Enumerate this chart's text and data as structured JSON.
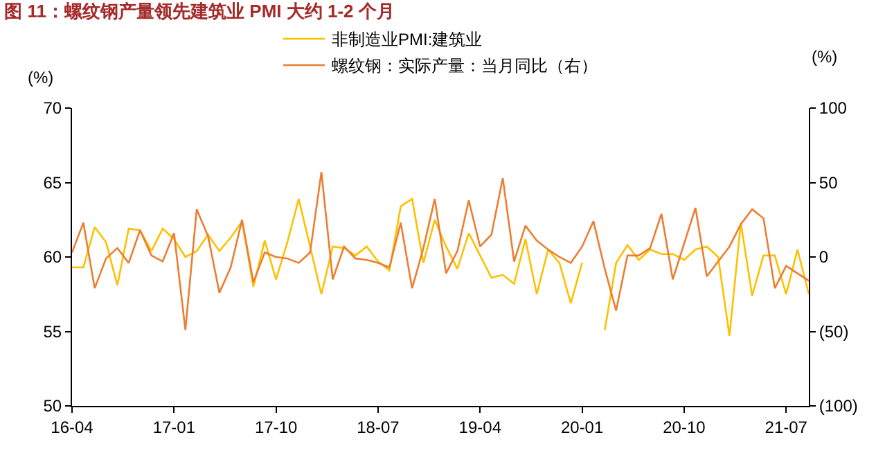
{
  "chart_data": {
    "type": "line",
    "title": "图 11：螺纹钢产量领先建筑业 PMI 大约 1-2 个月",
    "ylabel": "(%)",
    "y2label": "(%)",
    "categories": [
      "16-04",
      null,
      null,
      null,
      null,
      null,
      null,
      null,
      null,
      "17-01",
      null,
      null,
      null,
      null,
      null,
      null,
      null,
      null,
      "17-10",
      null,
      null,
      null,
      null,
      null,
      null,
      null,
      null,
      "18-07",
      null,
      null,
      null,
      null,
      null,
      null,
      null,
      null,
      "19-04",
      null,
      null,
      null,
      null,
      null,
      null,
      null,
      null,
      "20-01",
      null,
      null,
      null,
      null,
      null,
      null,
      null,
      null,
      "20-10",
      null,
      null,
      null,
      null,
      null,
      null,
      null,
      null,
      "21-07",
      null,
      null
    ],
    "series": [
      {
        "name": "非制造业PMI:建筑业",
        "color": "#ffc000",
        "values": [
          59.3,
          59.3,
          62.0,
          61.0,
          58.1,
          61.9,
          61.8,
          60.4,
          61.9,
          61.2,
          60.0,
          60.4,
          61.5,
          60.4,
          61.3,
          62.4,
          58.0,
          61.1,
          58.5,
          61.0,
          63.9,
          60.7,
          57.5,
          60.7,
          60.6,
          60.1,
          60.7,
          59.7,
          59.1,
          63.4,
          63.9,
          59.6,
          62.5,
          60.7,
          59.2,
          61.6,
          60.1,
          58.6,
          58.8,
          58.2,
          61.2,
          57.5,
          60.5,
          59.6,
          56.9,
          59.6,
          null,
          55.1,
          59.6,
          60.8,
          59.8,
          60.5,
          60.2,
          60.2,
          59.8,
          60.5,
          60.7,
          60.0,
          54.7,
          62.3,
          57.4,
          60.1,
          60.1,
          57.5,
          60.5,
          57.5
        ]
      },
      {
        "name": "螺纹钢：实际产量：当月同比（右）",
        "color": "#ed7d31",
        "axis": "y2",
        "values": [
          3,
          23,
          -21,
          -1,
          6,
          -4,
          18,
          1,
          -3,
          16,
          -49,
          32,
          14,
          -24,
          -7,
          25,
          -17,
          3,
          0,
          -1,
          -4,
          3,
          57,
          -15,
          7,
          -1,
          -2,
          -4,
          -7,
          23,
          -21,
          6,
          39,
          -11,
          4,
          38,
          7,
          15,
          53,
          -3,
          21,
          11,
          5,
          0,
          -4,
          7,
          24,
          -8,
          -36,
          1,
          1,
          6,
          29,
          -15,
          9,
          33,
          -13,
          -3,
          7,
          22,
          32,
          26,
          -21,
          -6,
          -11,
          -16
        ]
      }
    ],
    "ylim": [
      50,
      70
    ],
    "yticks": [
      50,
      55,
      60,
      65,
      70
    ],
    "y2lim": [
      -100,
      100
    ],
    "y2ticks": [
      {
        "value": -100,
        "label": "(100)"
      },
      {
        "value": -50,
        "label": "(50)"
      },
      0,
      50,
      100
    ],
    "legend": "top",
    "marker": "none",
    "line_style": "solid"
  }
}
